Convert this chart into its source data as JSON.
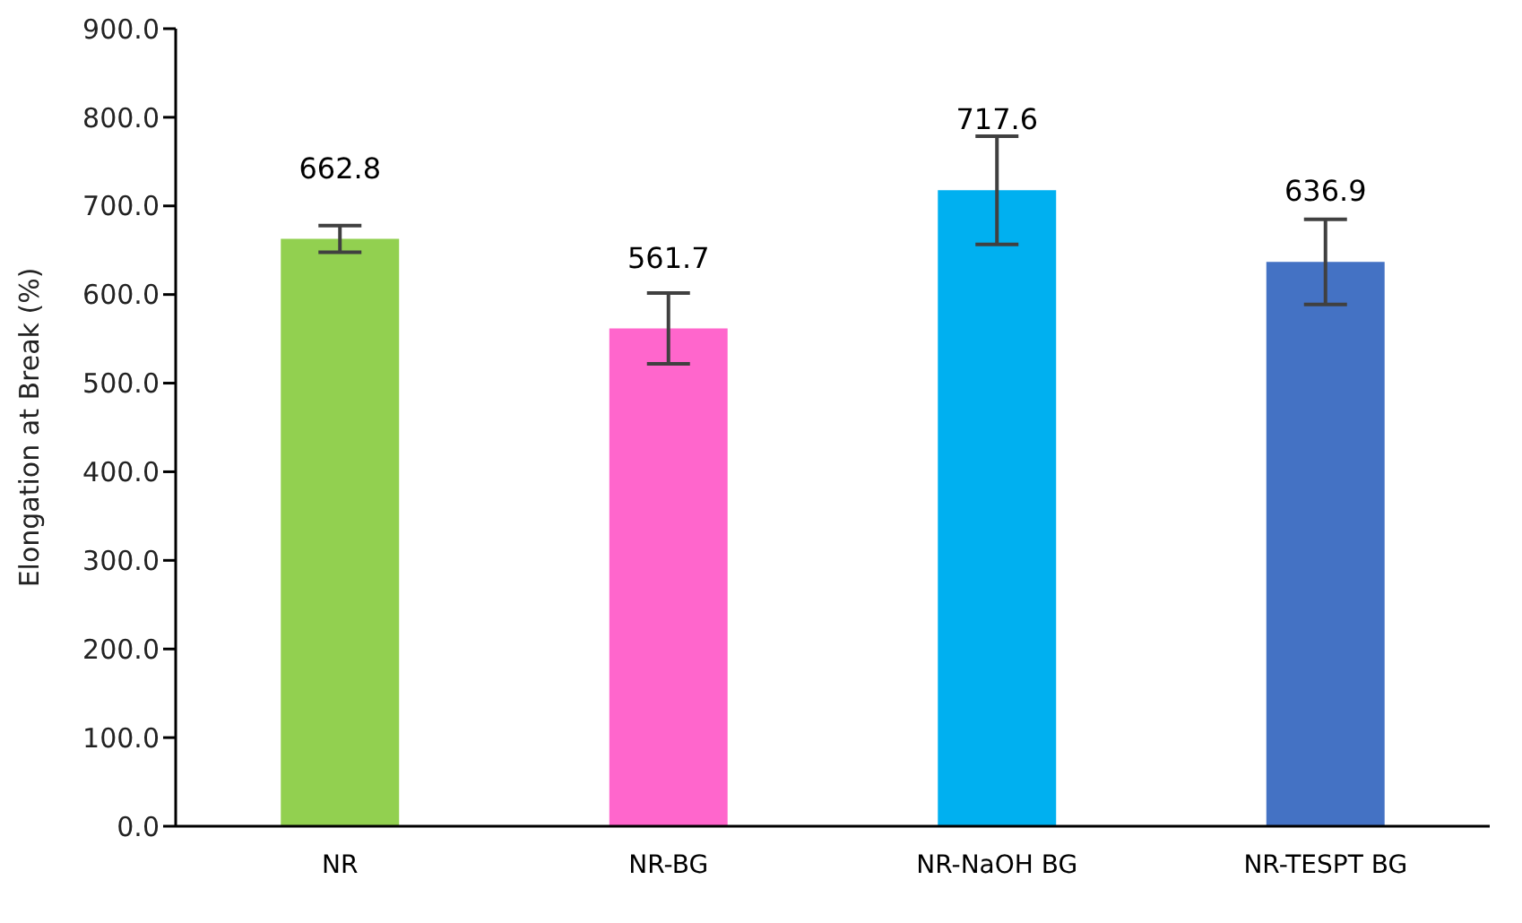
{
  "chart_data": {
    "type": "bar",
    "ylabel": "Elongation at Break (%)",
    "categories": [
      "NR",
      "NR-BG",
      "NR-NaOH BG",
      "NR-TESPT BG"
    ],
    "values": [
      662.8,
      561.7,
      717.6,
      636.9
    ],
    "colors": [
      "#92d050",
      "#ff66cc",
      "#00b0f0",
      "#4472c4"
    ],
    "errors": [
      15,
      40,
      61,
      48
    ],
    "data_labels": true,
    "ylim": [
      0,
      900
    ],
    "yticks": [
      {
        "value": 0,
        "label": "0.0"
      },
      {
        "value": 100,
        "label": "100.0"
      },
      {
        "value": 200,
        "label": "200.0"
      },
      {
        "value": 300,
        "label": "300.0"
      },
      {
        "value": 400,
        "label": "400.0"
      },
      {
        "value": 500,
        "label": "500.0"
      },
      {
        "value": 600,
        "label": "600.0"
      },
      {
        "value": 700,
        "label": "700.0"
      },
      {
        "value": 800,
        "label": "800.0"
      },
      {
        "value": 900,
        "label": "900.0"
      }
    ],
    "grid": false,
    "legend": false
  }
}
